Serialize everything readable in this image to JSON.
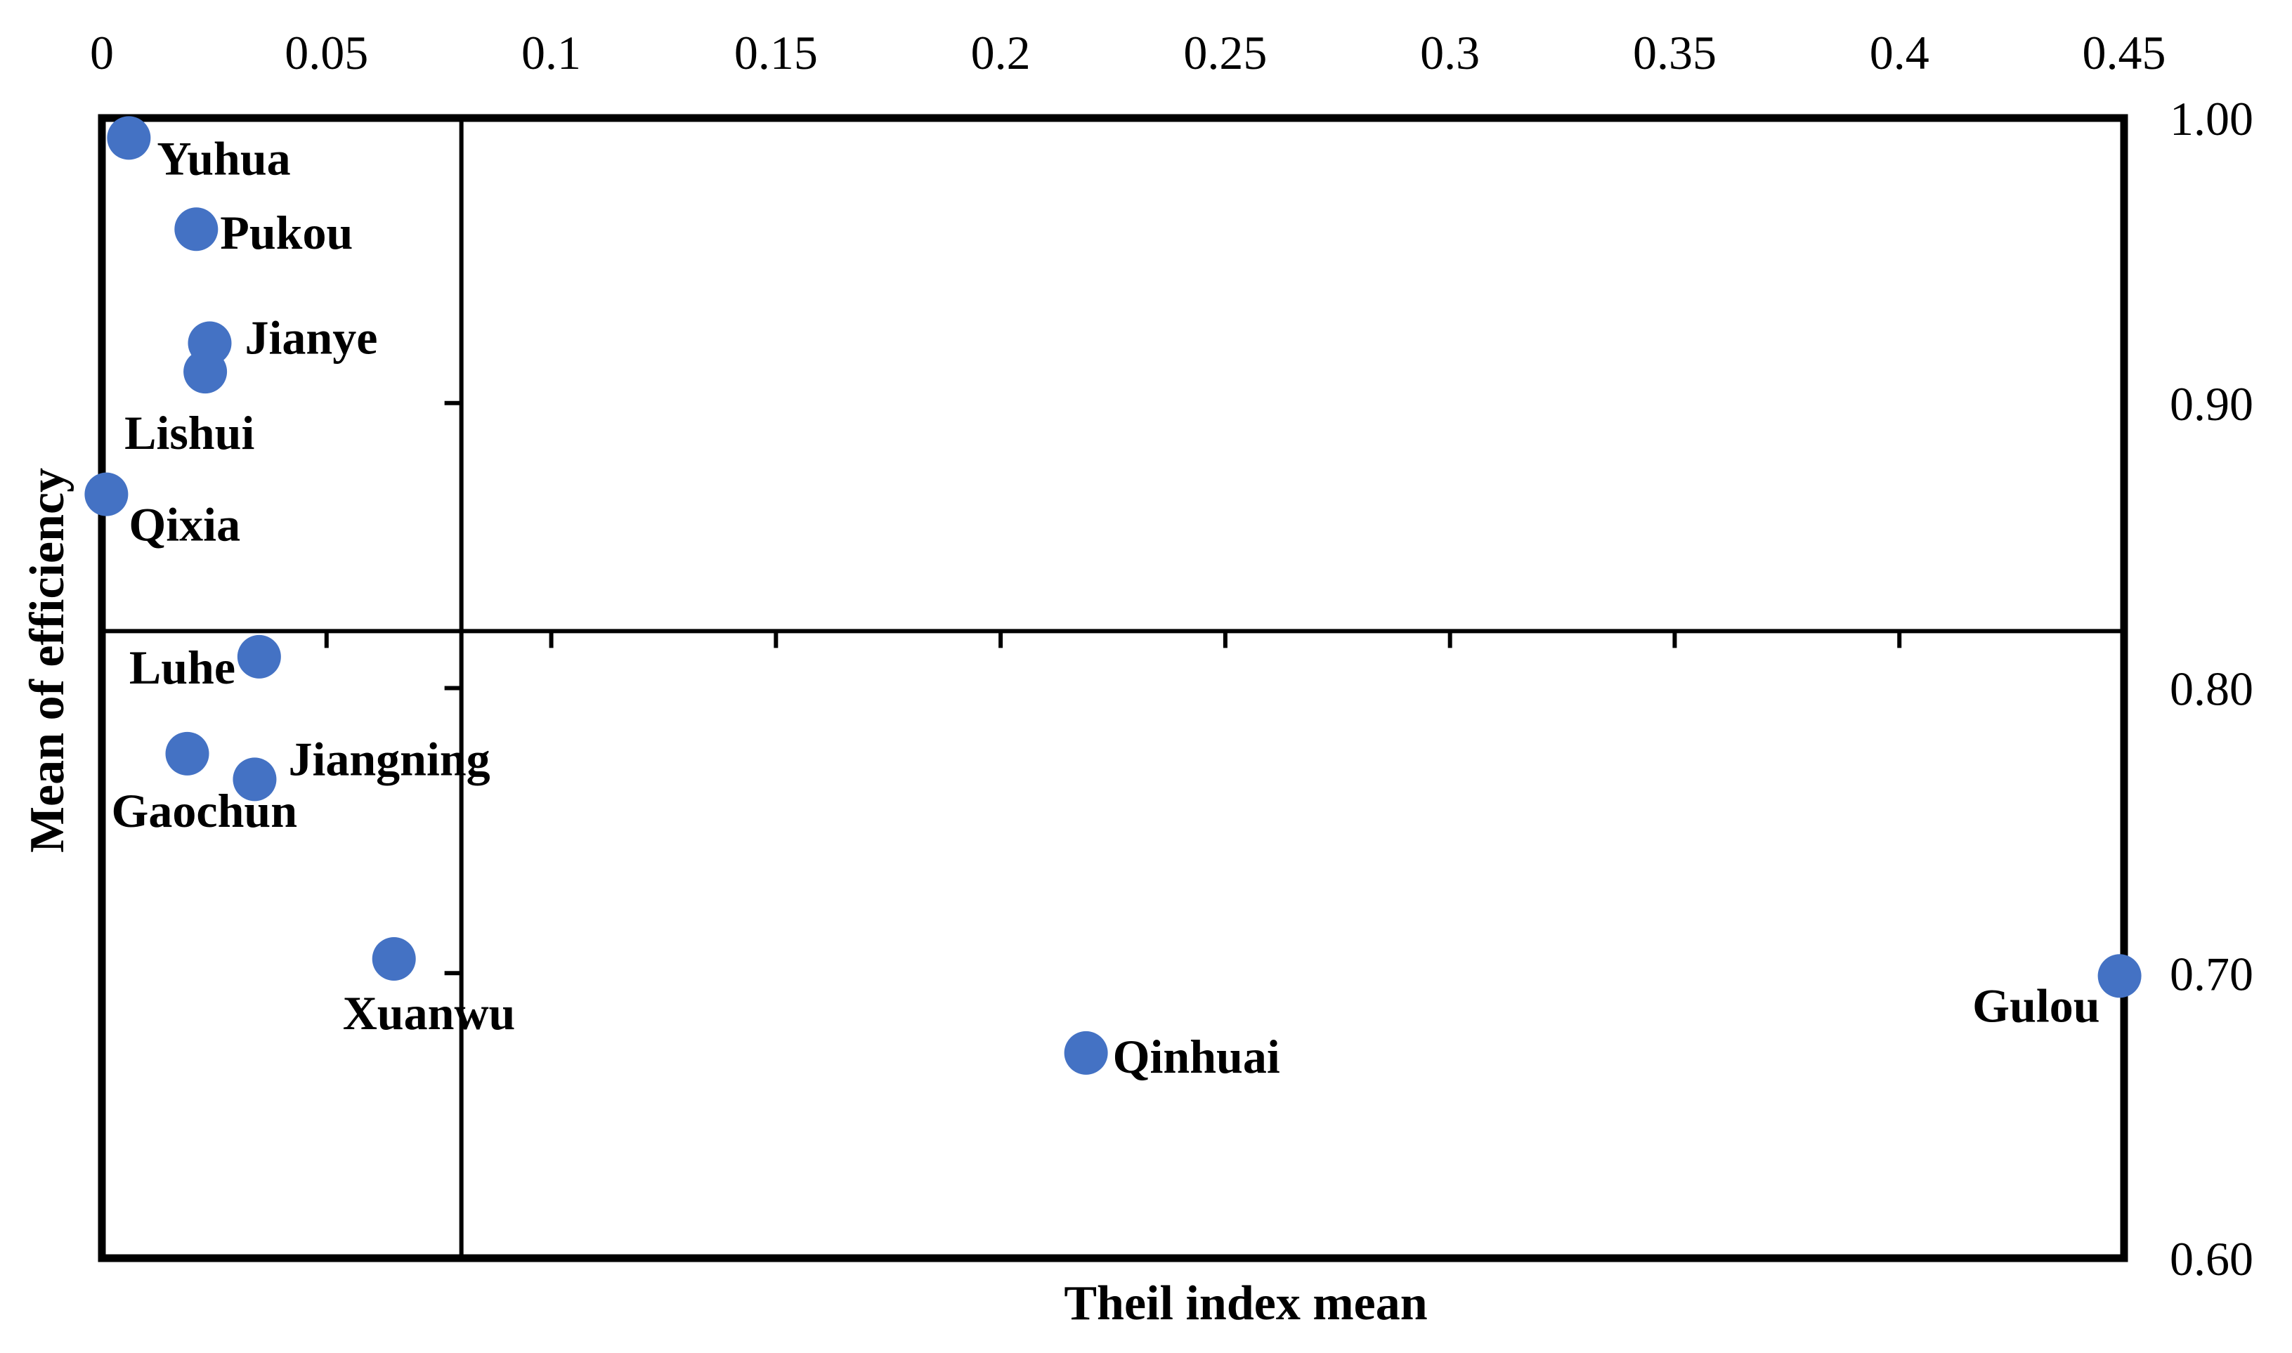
{
  "chart_data": {
    "type": "scatter",
    "xlabel": "Theil index mean",
    "ylabel": "Mean of efficiency",
    "xlim": [
      0,
      0.45
    ],
    "ylim": [
      0.6,
      1.0
    ],
    "x_axis_position": "top",
    "y_axis_position": "right",
    "x_ticks": [
      0,
      0.05,
      0.1,
      0.15,
      0.2,
      0.25,
      0.3,
      0.35,
      0.4,
      0.45
    ],
    "x_tick_labels": [
      "0",
      "0.05",
      "0.1",
      "0.15",
      "0.2",
      "0.25",
      "0.3",
      "0.35",
      "0.4",
      "0.45"
    ],
    "y_ticks": [
      1.0,
      0.9,
      0.8,
      0.7,
      0.6
    ],
    "y_tick_labels": [
      "1.00",
      "0.90",
      "0.80",
      "0.70",
      "0.60"
    ],
    "quadrant_lines": {
      "x": 0.08,
      "y": 0.82
    },
    "grid": false,
    "marker_color": "#4472C4",
    "points": [
      {
        "label": "Yuhua",
        "x": 0.006,
        "y": 0.993
      },
      {
        "label": "Pukou",
        "x": 0.021,
        "y": 0.961
      },
      {
        "label": "Jianye",
        "x": 0.024,
        "y": 0.921
      },
      {
        "label": "Lishui",
        "x": 0.023,
        "y": 0.911
      },
      {
        "label": "Qixia",
        "x": 0.001,
        "y": 0.868
      },
      {
        "label": "Luhe",
        "x": 0.035,
        "y": 0.811
      },
      {
        "label": "Jiangning",
        "x": 0.034,
        "y": 0.768
      },
      {
        "label": "Gaochun",
        "x": 0.019,
        "y": 0.777
      },
      {
        "label": "Xuanwu",
        "x": 0.065,
        "y": 0.705
      },
      {
        "label": "Qinhuai",
        "x": 0.219,
        "y": 0.672
      },
      {
        "label": "Gulou",
        "x": 0.449,
        "y": 0.699
      }
    ]
  }
}
